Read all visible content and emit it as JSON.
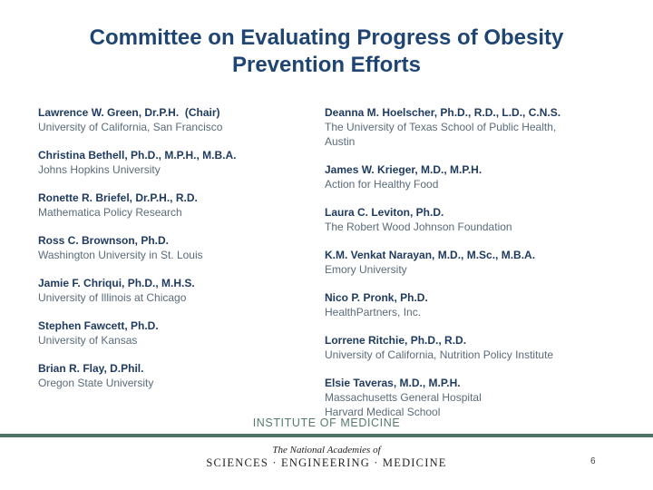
{
  "slide": {
    "title_line1": "Committee on Evaluating Progress of Obesity",
    "title_line2": "Prevention Efforts"
  },
  "members": {
    "left": [
      {
        "name": "Lawrence W. Green, Dr.P.H.  (Chair)",
        "affiliation": [
          "University of California, San Francisco"
        ]
      },
      {
        "name": "Christina Bethell, Ph.D., M.P.H., M.B.A.",
        "affiliation": [
          "Johns Hopkins University"
        ]
      },
      {
        "name": "Ronette R. Briefel, Dr.P.H., R.D.",
        "affiliation": [
          "Mathematica Policy Research"
        ]
      },
      {
        "name": "Ross C. Brownson, Ph.D.",
        "affiliation": [
          "Washington University in St. Louis"
        ]
      },
      {
        "name": "Jamie F. Chriqui, Ph.D., M.H.S.",
        "affiliation": [
          "University of Illinois at Chicago"
        ]
      },
      {
        "name": "Stephen Fawcett, Ph.D.",
        "affiliation": [
          "University of Kansas"
        ]
      },
      {
        "name": "Brian R. Flay, D.Phil.",
        "affiliation": [
          "Oregon State University"
        ]
      }
    ],
    "right": [
      {
        "name": "Deanna M. Hoelscher, Ph.D., R.D., L.D., C.N.S.",
        "affiliation": [
          "The University of Texas School of Public Health,",
          "Austin"
        ]
      },
      {
        "name": "James W. Krieger, M.D., M.P.H.",
        "affiliation": [
          "Action for Healthy Food"
        ]
      },
      {
        "name": "Laura C. Leviton, Ph.D.",
        "affiliation": [
          "The Robert Wood Johnson Foundation"
        ]
      },
      {
        "name": "K.M. Venkat Narayan, M.D., M.Sc., M.B.A.",
        "affiliation": [
          "Emory University"
        ]
      },
      {
        "name": "Nico P. Pronk, Ph.D.",
        "affiliation": [
          "HealthPartners, Inc."
        ]
      },
      {
        "name": "Lorrene Ritchie, Ph.D., R.D.",
        "affiliation": [
          "University of California, Nutrition Policy Institute"
        ]
      },
      {
        "name": "Elsie Taveras, M.D., M.P.H.",
        "affiliation": [
          "Massachusetts General Hospital",
          "Harvard Medical School"
        ]
      }
    ]
  },
  "footer": {
    "institute": "INSTITUTE OF MEDICINE",
    "logo_line1": "The National Academies of",
    "logo_line2": "SCIENCES · ENGINEERING · MEDICINE",
    "page_number": "6"
  },
  "colors": {
    "title": "#1f4572",
    "name": "#1e3a5f",
    "affiliation": "#5a6b7a",
    "institute": "#56796d",
    "divider_bar": "#4e7266"
  }
}
